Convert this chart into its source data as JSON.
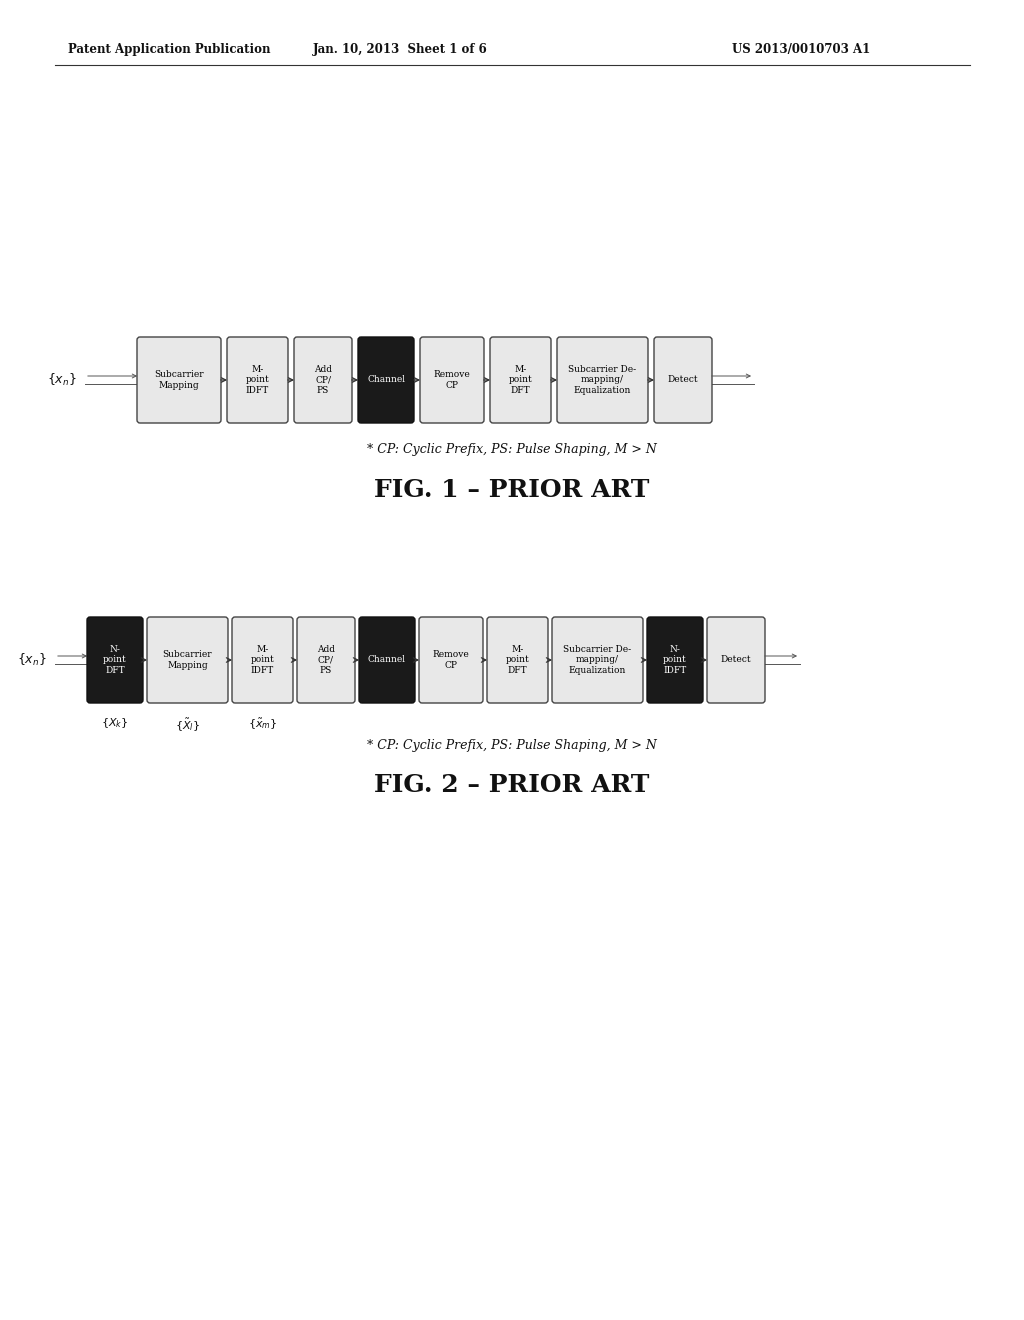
{
  "header_left": "Patent Application Publication",
  "header_mid": "Jan. 10, 2013  Sheet 1 of 6",
  "header_right": "US 2013/0010703 A1",
  "fig1_caption": "* CP: Cyclic Prefix, PS: Pulse Shaping, M > N",
  "fig1_title": "FIG. 1 – PRIOR ART",
  "fig2_caption": "* CP: Cyclic Prefix, PS: Pulse Shaping, M > N",
  "fig2_title": "FIG. 2 – PRIOR ART",
  "fig1_input": "{xₙ}",
  "fig2_input": "{xₙ}",
  "fig1_blocks": [
    {
      "label": "Subcarrier\nMapping",
      "dark": false
    },
    {
      "label": "M-\npoint\nIDFT",
      "dark": false
    },
    {
      "label": "Add\nCP/\nPS",
      "dark": false
    },
    {
      "label": "Channel",
      "dark": true
    },
    {
      "label": "Remove\nCP",
      "dark": false
    },
    {
      "label": "M-\npoint\nDFT",
      "dark": false
    },
    {
      "label": "Subcarrier De-\nmapping/\nEqualization",
      "dark": false
    },
    {
      "label": "Detect",
      "dark": false
    }
  ],
  "fig2_blocks": [
    {
      "label": "N-\npoint\nDFT",
      "dark": true
    },
    {
      "label": "Subcarrier\nMapping",
      "dark": false
    },
    {
      "label": "M-\npoint\nIDFT",
      "dark": false
    },
    {
      "label": "Add\nCP/\nPS",
      "dark": false
    },
    {
      "label": "Channel",
      "dark": true
    },
    {
      "label": "Remove\nCP",
      "dark": false
    },
    {
      "label": "M-\npoint\nDFT",
      "dark": false
    },
    {
      "label": "Subcarrier De-\nmapping/\nEqualization",
      "dark": false
    },
    {
      "label": "N-\npoint\nIDFT",
      "dark": true
    },
    {
      "label": "Detect",
      "dark": false
    }
  ],
  "bg_color": "#ffffff",
  "block_light_fc": "#e8e8e8",
  "block_light_ec": "#444444",
  "block_dark_fc": "#1a1a1a",
  "block_dark_ec": "#111111",
  "text_light": "#000000",
  "text_dark": "#ffffff"
}
